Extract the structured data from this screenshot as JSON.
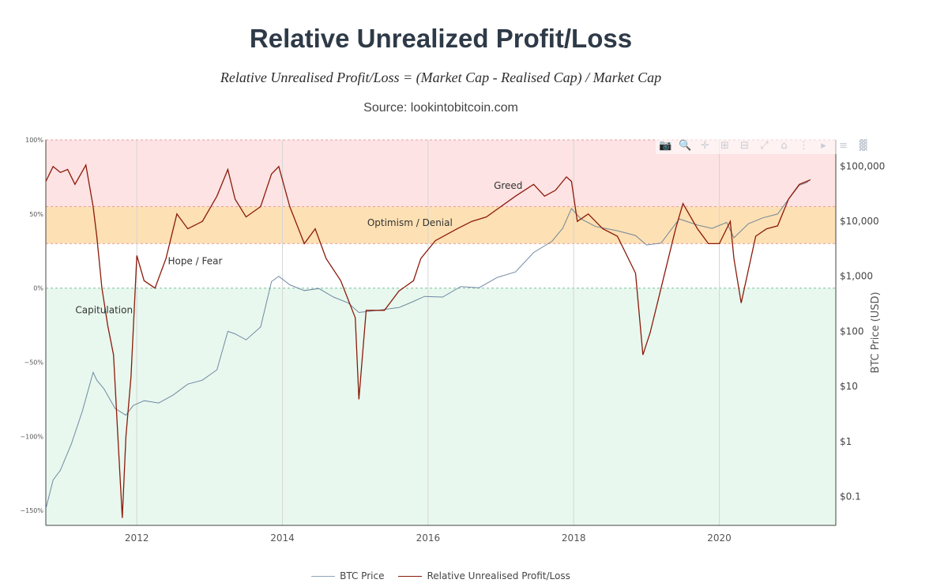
{
  "header": {
    "title": "Relative Unrealized Profit/Loss",
    "formula": "Relative Unrealised Profit/Loss = (Market Cap - Realised Cap) / Market Cap",
    "source": "Source: lookintobitcoin.com"
  },
  "toolbar": {
    "items": [
      "camera-icon",
      "zoom-icon",
      "pan-icon",
      "zoom-in-icon",
      "zoom-out-icon",
      "autoscale-icon",
      "reset-axes-icon",
      "spikelines-icon",
      "hover-closest-icon",
      "hover-compare-icon",
      "plotly-logo-icon"
    ]
  },
  "colors": {
    "greed_zone": "#fde3e3",
    "optimism_zone": "#fde0b3",
    "capitulation_zone": "#e8f8ee",
    "nupl_line": "#8b1a0a",
    "btc_line": "#5b7594"
  },
  "chart_data": {
    "type": "line",
    "title": "Relative Unrealized Profit/Loss",
    "x_ticks": [
      "2012",
      "2014",
      "2016",
      "2018",
      "2020"
    ],
    "x_range": [
      2010.75,
      2021.6
    ],
    "y_left": {
      "label": "",
      "range": [
        -160,
        100
      ],
      "ticks": [
        100,
        50,
        0,
        -50,
        -100,
        -150
      ],
      "tick_labels": [
        "100%",
        "50%",
        "0%",
        "−50%",
        "−100%",
        "−150%"
      ]
    },
    "y_right": {
      "label": "BTC Price (USD)",
      "scale": "log",
      "range": [
        0.03,
        300000
      ],
      "ticks": [
        100000,
        10000,
        1000,
        100,
        10,
        1,
        0.1
      ],
      "tick_labels": [
        "$100,000",
        "$10,000",
        "$1,000",
        "$100",
        "$10",
        "$1",
        "$0.1"
      ]
    },
    "zones": [
      {
        "name": "Greed",
        "from": 55,
        "to": 100
      },
      {
        "name": "Optimism / Denial",
        "from": 30,
        "to": 55
      },
      {
        "name": "Hope / Fear",
        "from": 0,
        "to": 30
      },
      {
        "name": "Capitulation",
        "from": -160,
        "to": 0
      }
    ],
    "zone_labels": [
      {
        "text": "Greed",
        "x": 2017.1,
        "y": 67
      },
      {
        "text": "Optimism / Denial",
        "x": 2015.75,
        "y": 42
      },
      {
        "text": "Hope / Fear",
        "x": 2012.8,
        "y": 16
      },
      {
        "text": "Capitulation",
        "x": 2011.55,
        "y": -17
      }
    ],
    "series": [
      {
        "name": "BTC Price",
        "axis": "right",
        "x": [
          2010.75,
          2010.85,
          2010.95,
          2011.1,
          2011.25,
          2011.4,
          2011.45,
          2011.55,
          2011.7,
          2011.85,
          2011.95,
          2012.1,
          2012.3,
          2012.5,
          2012.7,
          2012.9,
          2013.1,
          2013.25,
          2013.35,
          2013.5,
          2013.7,
          2013.85,
          2013.95,
          2014.1,
          2014.3,
          2014.5,
          2014.7,
          2014.9,
          2015.05,
          2015.3,
          2015.6,
          2015.8,
          2015.95,
          2016.2,
          2016.45,
          2016.7,
          2016.95,
          2017.2,
          2017.45,
          2017.7,
          2017.85,
          2017.97,
          2018.1,
          2018.3,
          2018.6,
          2018.85,
          2019.0,
          2019.2,
          2019.45,
          2019.7,
          2019.9,
          2020.1,
          2020.2,
          2020.4,
          2020.6,
          2020.8,
          2020.95,
          2021.1,
          2021.2,
          2021.25
        ],
        "values": [
          0.06,
          0.2,
          0.3,
          0.9,
          3.5,
          18,
          13,
          9,
          4,
          3,
          4.5,
          5.5,
          5,
          7,
          11,
          13,
          20,
          100,
          90,
          70,
          120,
          800,
          1000,
          700,
          550,
          600,
          420,
          330,
          220,
          240,
          270,
          350,
          430,
          420,
          650,
          620,
          950,
          1200,
          2700,
          4300,
          7500,
          17000,
          11000,
          8000,
          6700,
          5500,
          3700,
          4000,
          11000,
          8500,
          7400,
          9500,
          5000,
          9000,
          11500,
          13500,
          25000,
          45000,
          50000,
          58000
        ]
      },
      {
        "name": "Relative Unrealised Profit/Loss",
        "axis": "left",
        "unit": "%",
        "x": [
          2010.75,
          2010.85,
          2010.95,
          2011.05,
          2011.15,
          2011.3,
          2011.4,
          2011.45,
          2011.52,
          2011.6,
          2011.68,
          2011.75,
          2011.8,
          2011.85,
          2011.92,
          2012.0,
          2012.1,
          2012.25,
          2012.4,
          2012.55,
          2012.7,
          2012.9,
          2013.1,
          2013.25,
          2013.35,
          2013.5,
          2013.7,
          2013.85,
          2013.95,
          2014.1,
          2014.3,
          2014.45,
          2014.6,
          2014.8,
          2015.0,
          2015.05,
          2015.15,
          2015.4,
          2015.6,
          2015.8,
          2015.9,
          2016.1,
          2016.4,
          2016.6,
          2016.8,
          2017.0,
          2017.2,
          2017.45,
          2017.6,
          2017.75,
          2017.9,
          2017.97,
          2018.05,
          2018.2,
          2018.4,
          2018.6,
          2018.85,
          2018.95,
          2019.05,
          2019.2,
          2019.4,
          2019.5,
          2019.7,
          2019.85,
          2020.0,
          2020.15,
          2020.2,
          2020.3,
          2020.5,
          2020.65,
          2020.8,
          2020.95,
          2021.1,
          2021.25
        ],
        "values": [
          72,
          82,
          78,
          80,
          70,
          83,
          55,
          35,
          0,
          -25,
          -45,
          -110,
          -155,
          -100,
          -60,
          22,
          5,
          0,
          20,
          50,
          40,
          45,
          62,
          80,
          60,
          48,
          55,
          77,
          82,
          55,
          30,
          40,
          20,
          5,
          -20,
          -75,
          -15,
          -15,
          -2,
          5,
          20,
          32,
          40,
          45,
          48,
          55,
          62,
          70,
          62,
          66,
          75,
          72,
          45,
          50,
          40,
          35,
          10,
          -45,
          -30,
          0,
          40,
          57,
          40,
          30,
          30,
          45,
          20,
          -10,
          35,
          40,
          42,
          60,
          70,
          73
        ]
      }
    ]
  }
}
